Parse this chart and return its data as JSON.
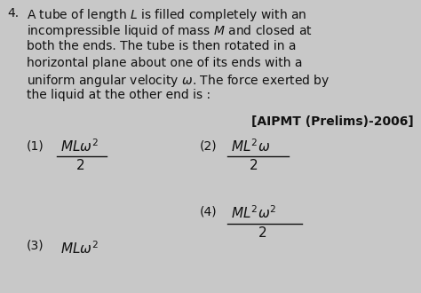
{
  "bg_color": "#c8c8c8",
  "text_color": "#111111",
  "fig_width": 4.74,
  "fig_height": 3.3,
  "dpi": 100,
  "question_num": "4.",
  "question_text_lines": [
    "A tube of length $L$ is filled completely with an",
    "incompressible liquid of mass $M$ and closed at",
    "both the ends. The tube is then rotated in a",
    "horizontal plane about one of its ends with a",
    "uniform angular velocity $\\omega$. The force exerted by",
    "the liquid at the other end is :"
  ],
  "source": "[AIPMT (Prelims)-2006]",
  "option1_label": "(1)",
  "option1_num": "$ML\\omega^2$",
  "option1_den": "$2$",
  "option2_label": "(2)",
  "option2_num": "$ML^2\\omega$",
  "option2_den": "$2$",
  "option3_label": "(3)",
  "option3_expr": "$ML\\omega^2$",
  "option4_label": "(4)",
  "option4_num": "$ML^2\\omega^2$",
  "option4_den": "$2$"
}
